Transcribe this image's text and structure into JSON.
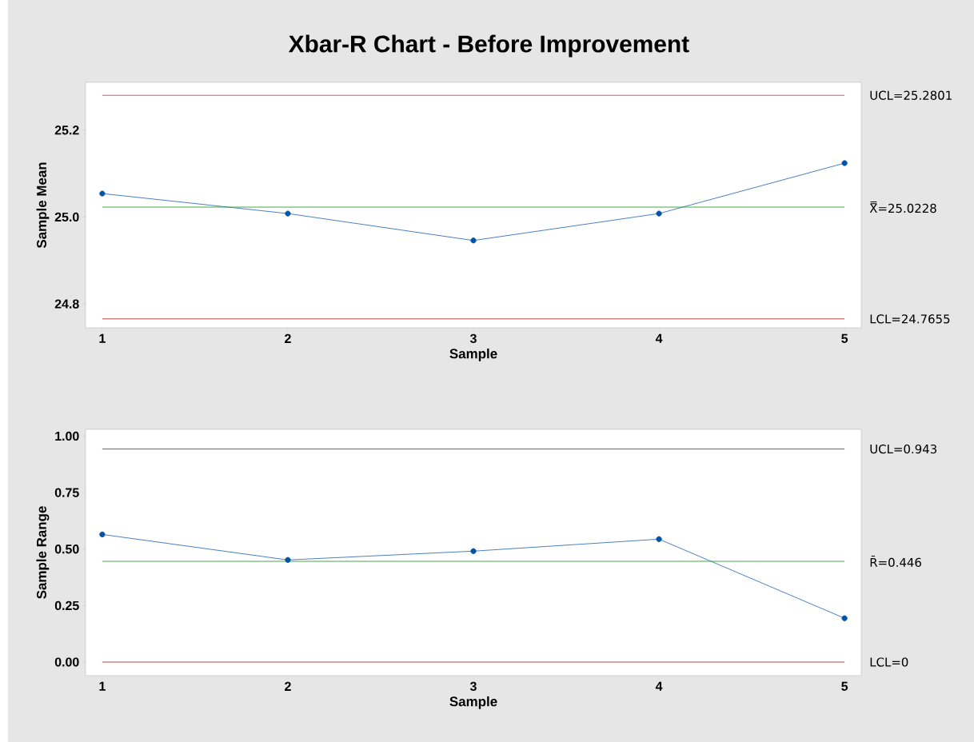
{
  "chart_data": [
    {
      "type": "line",
      "title": "Xbar-R Chart - Before Improvement",
      "xlabel": "Sample",
      "ylabel": "Sample Mean",
      "x": [
        1,
        2,
        3,
        4,
        5
      ],
      "series": [
        {
          "color": "#1f5fb4",
          "values": [
            25.054,
            25.008,
            24.946,
            25.008,
            25.124
          ]
        }
      ],
      "xlim": [
        0.91,
        5.09
      ],
      "xticks": [
        1,
        2,
        3,
        4,
        5
      ],
      "ylim": [
        24.745,
        25.31
      ],
      "yticks": [
        {
          "value": 24.8,
          "label": "24.8"
        },
        {
          "value": 25.0,
          "label": "25.0"
        },
        {
          "value": 25.2,
          "label": "25.2"
        }
      ],
      "marker": "circle",
      "grid": false,
      "ref_lines": [
        {
          "axis": "y",
          "value": 25.2801,
          "label": "UCL=25.2801",
          "color": "#c0504d"
        },
        {
          "axis": "y",
          "value": 25.0228,
          "label": "X̿=25.0228",
          "color": "#2ca02c"
        },
        {
          "axis": "y",
          "value": 24.7655,
          "label": "LCL=24.7655",
          "color": "#b03030"
        }
      ]
    },
    {
      "type": "line",
      "xlabel": "Sample",
      "ylabel": "Sample Range",
      "x": [
        1,
        2,
        3,
        4,
        5
      ],
      "series": [
        {
          "color": "#1f5fb4",
          "values": [
            0.565,
            0.452,
            0.491,
            0.544,
            0.194
          ]
        }
      ],
      "xlim": [
        0.91,
        5.09
      ],
      "xticks": [
        1,
        2,
        3,
        4,
        5
      ],
      "ylim": [
        -0.06,
        1.03
      ],
      "yticks": [
        {
          "value": 0,
          "label": "0.00"
        },
        {
          "value": 0.25,
          "label": "0.25"
        },
        {
          "value": 0.5,
          "label": "0.50"
        },
        {
          "value": 0.75,
          "label": "0.75"
        },
        {
          "value": 1.0,
          "label": "1.00"
        }
      ],
      "marker": "circle",
      "grid": false,
      "ref_lines": [
        {
          "axis": "y",
          "value": 0.943,
          "label": "UCL=0.943",
          "color": "#b03030"
        },
        {
          "axis": "y",
          "value": 0.446,
          "label": "R̄=0.446",
          "color": "#2ca02c"
        },
        {
          "axis": "y",
          "value": 0,
          "label": "LCL=0",
          "color": "#b03030"
        }
      ]
    }
  ]
}
